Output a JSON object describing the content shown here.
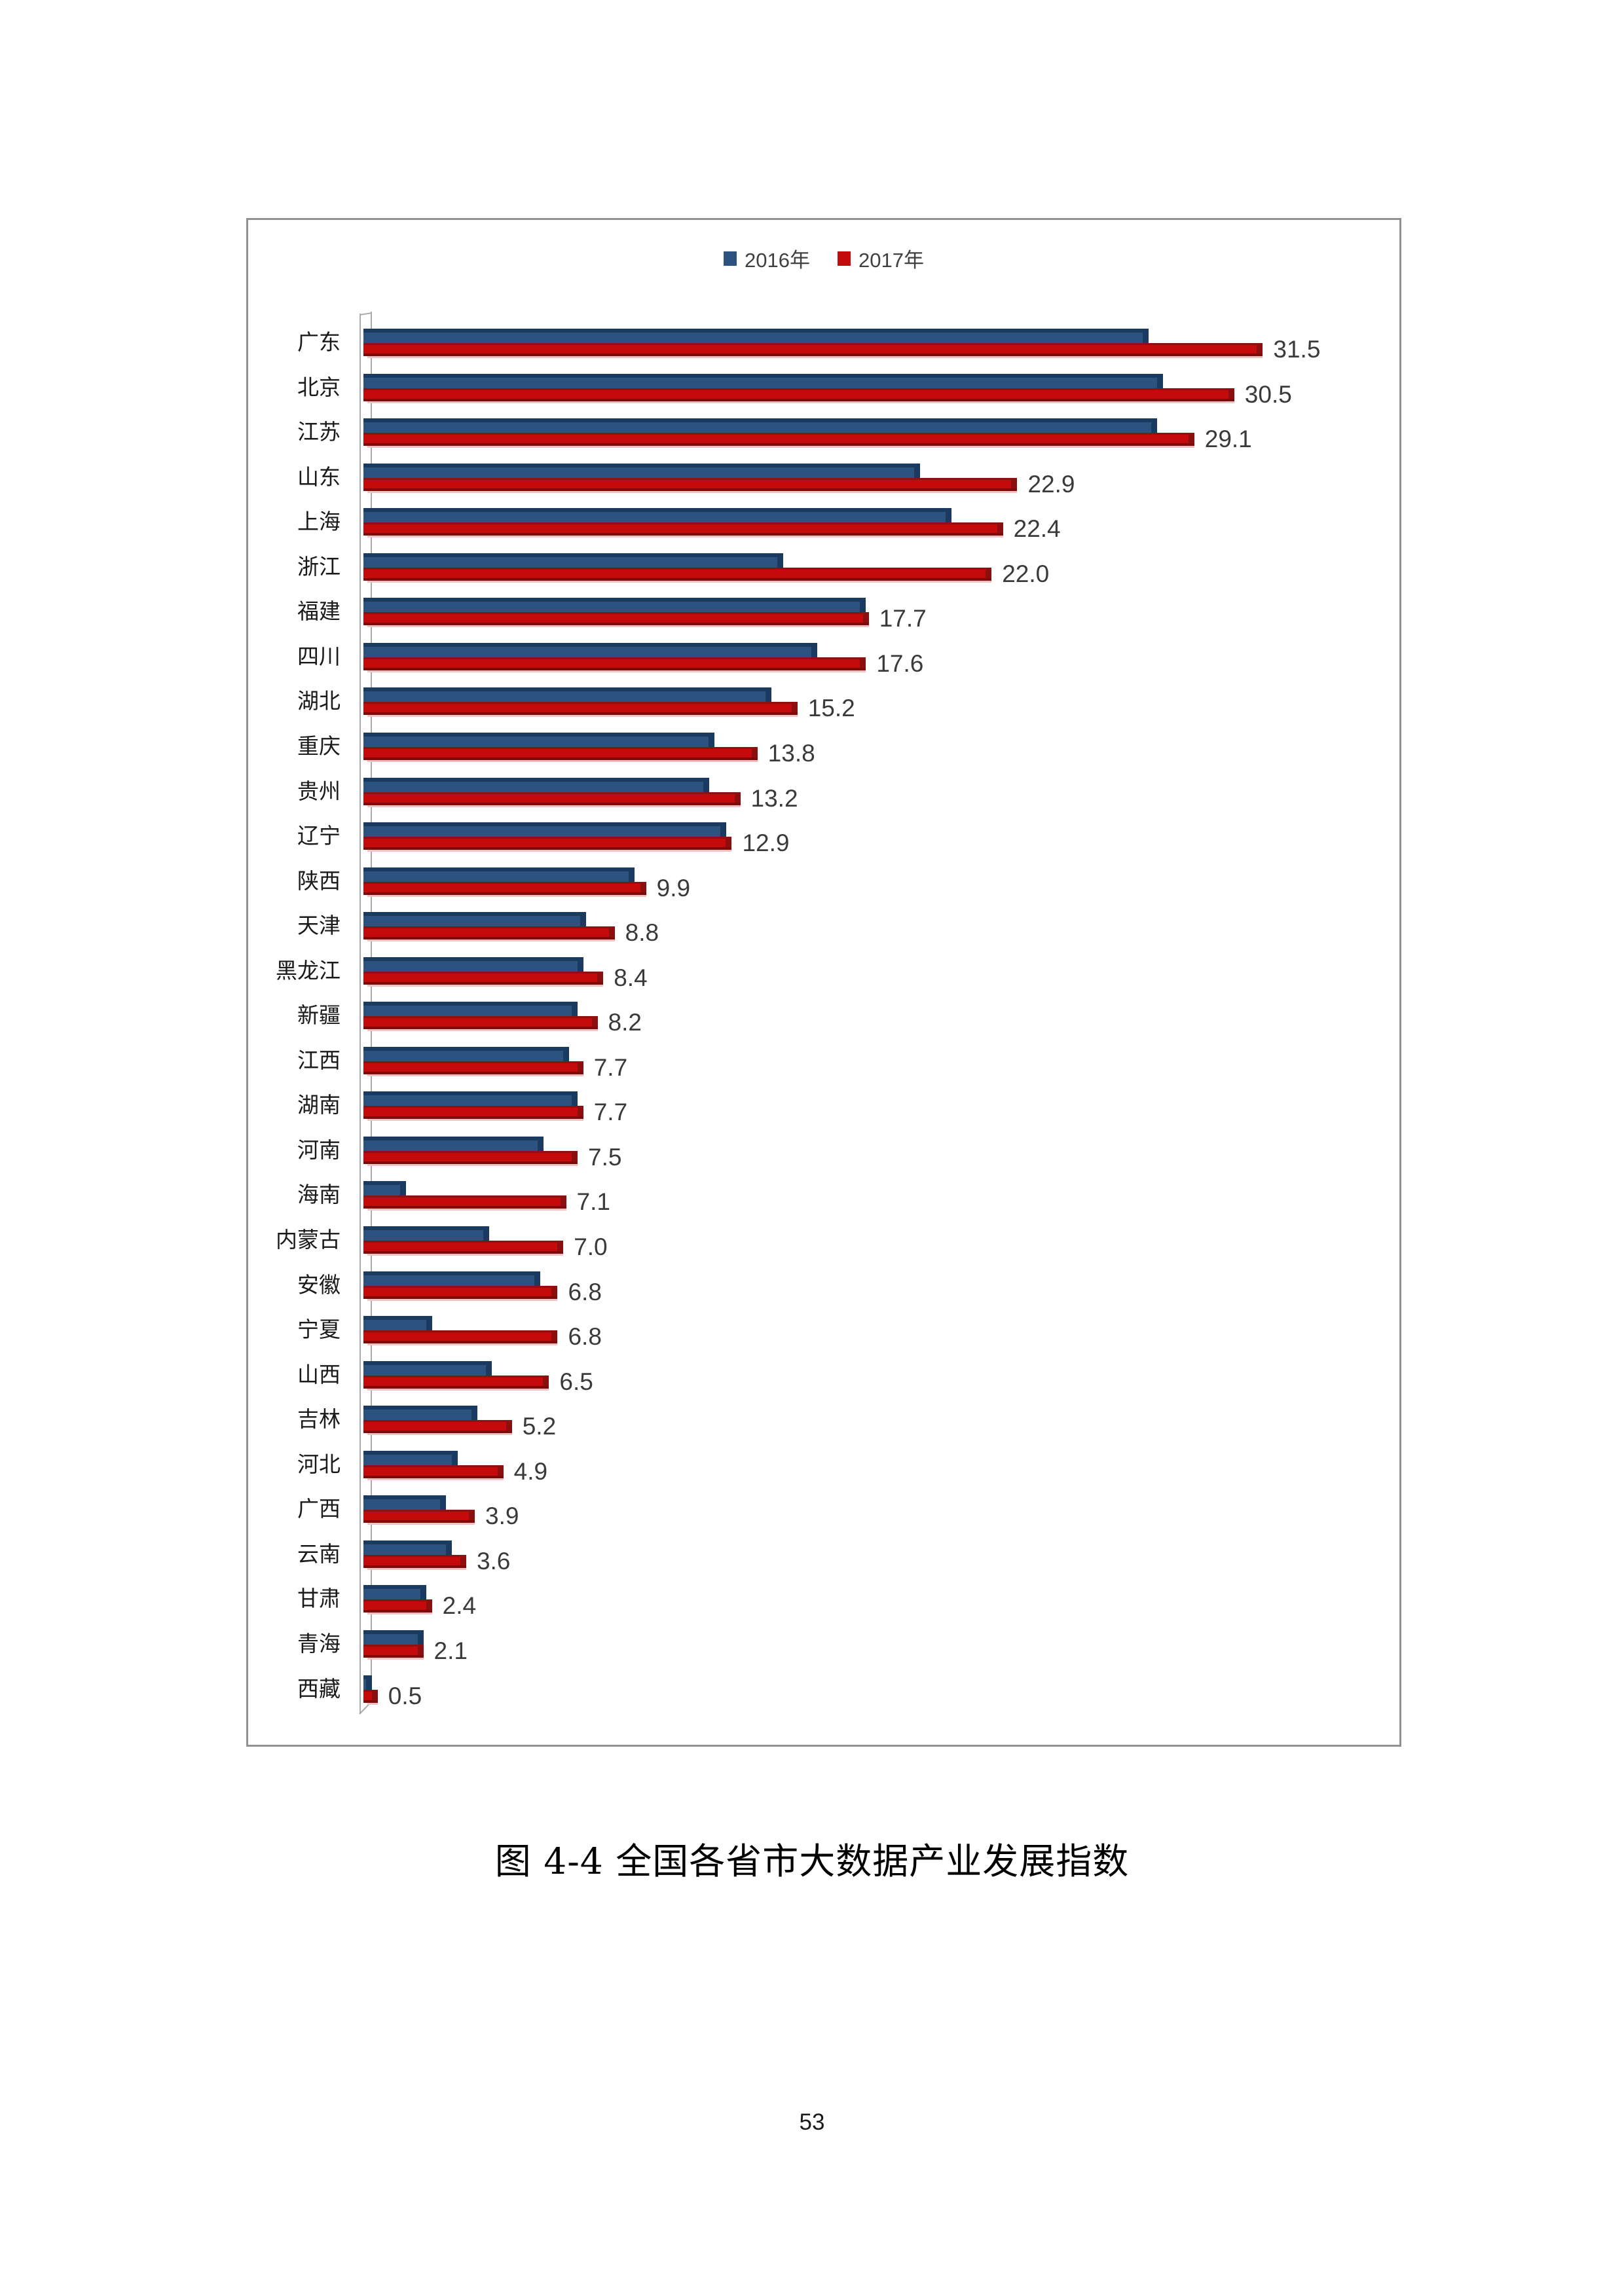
{
  "page": {
    "caption": "图 4-4 全国各省市大数据产业发展指数",
    "page_number": "53"
  },
  "chart_data": {
    "type": "bar",
    "orientation": "horizontal",
    "title": "",
    "legend_position": "top-center",
    "grid": false,
    "xlim": [
      0,
      36
    ],
    "categories": [
      "广东",
      "北京",
      "江苏",
      "山东",
      "上海",
      "浙江",
      "福建",
      "四川",
      "湖北",
      "重庆",
      "贵州",
      "辽宁",
      "陕西",
      "天津",
      "黑龙江",
      "新疆",
      "江西",
      "湖南",
      "河南",
      "海南",
      "内蒙古",
      "安徽",
      "宁夏",
      "山西",
      "吉林",
      "河北",
      "广西",
      "云南",
      "甘肃",
      "青海",
      "西藏"
    ],
    "series": [
      {
        "name": "2016年",
        "color": "#2C5380",
        "values_estimated": true,
        "values": [
          27.5,
          28.0,
          27.8,
          19.5,
          20.6,
          14.7,
          17.6,
          15.9,
          14.3,
          12.3,
          12.1,
          12.7,
          9.5,
          7.8,
          7.7,
          7.5,
          7.2,
          7.5,
          6.3,
          1.5,
          4.4,
          6.2,
          2.4,
          4.5,
          4.0,
          3.3,
          2.9,
          3.1,
          2.2,
          2.1,
          0.3
        ]
      },
      {
        "name": "2017年",
        "color": "#C40A0A",
        "values": [
          31.5,
          30.5,
          29.1,
          22.9,
          22.4,
          22.0,
          17.7,
          17.6,
          15.2,
          13.8,
          13.2,
          12.9,
          9.9,
          8.8,
          8.4,
          8.2,
          7.7,
          7.7,
          7.5,
          7.1,
          7.0,
          6.8,
          6.8,
          6.5,
          5.2,
          4.9,
          3.9,
          3.6,
          2.4,
          2.1,
          0.5
        ]
      }
    ],
    "value_labels": [
      "31.5",
      "30.5",
      "29.1",
      "22.9",
      "22.4",
      "22.0",
      "17.7",
      "17.6",
      "15.2",
      "13.8",
      "13.2",
      "12.9",
      "9.9",
      "8.8",
      "8.4",
      "8.2",
      "7.7",
      "7.7",
      "7.5",
      "7.1",
      "7.0",
      "6.8",
      "6.8",
      "6.5",
      "5.2",
      "4.9",
      "3.9",
      "3.6",
      "2.4",
      "2.1",
      "0.5"
    ],
    "value_labels_series": "2017年"
  }
}
